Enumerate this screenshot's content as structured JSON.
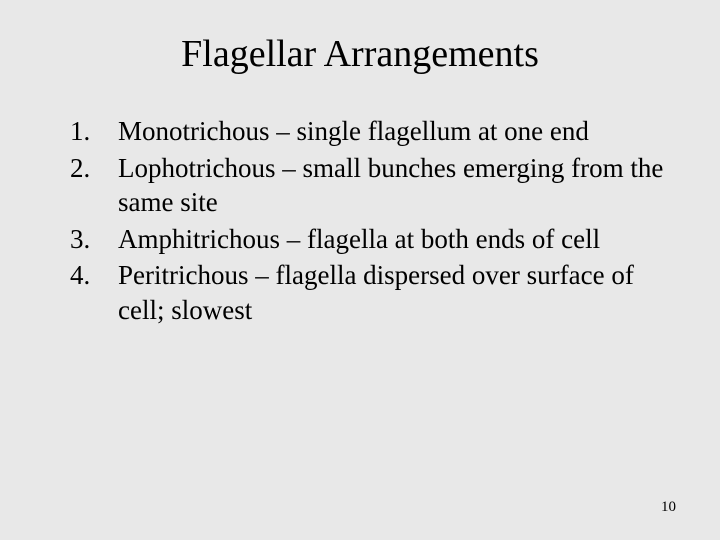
{
  "slide": {
    "background_color": "#e8e8e8",
    "text_color": "#000000",
    "title": "Flagellar Arrangements",
    "title_fontsize": 38,
    "body_fontsize": 27,
    "font_family": "Times New Roman",
    "items": [
      "Monotrichous – single flagellum at one end",
      "Lophotrichous – small bunches emerging from the same site",
      "Amphitrichous – flagella at both ends of cell",
      "Peritrichous – flagella dispersed over surface of cell; slowest"
    ],
    "page_number": "10"
  }
}
